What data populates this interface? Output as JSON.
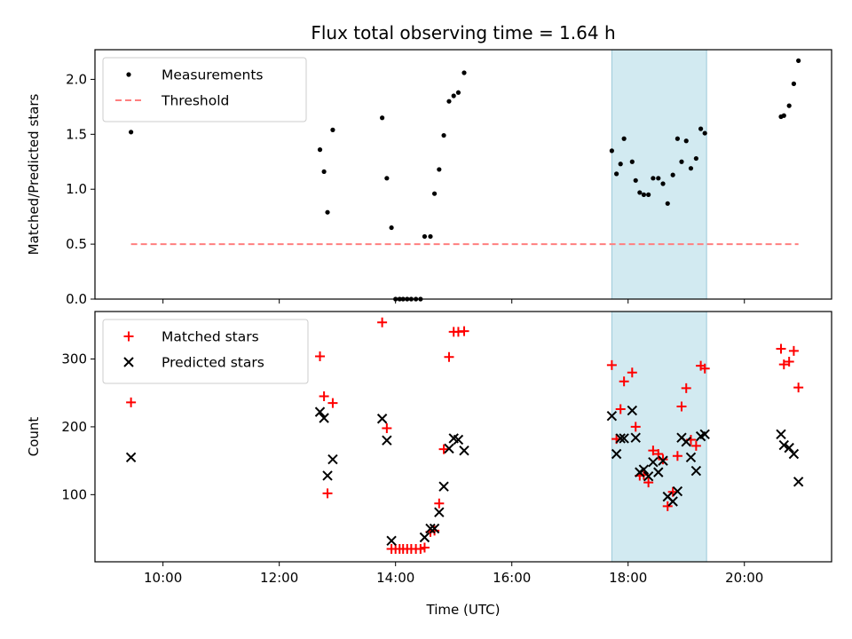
{
  "chart_data": {
    "type": "scatter",
    "title": "Flux total observing time = 1.64 h",
    "xlabel": "Time (UTC)",
    "xlim": [
      8.83,
      21.5
    ],
    "xticks": [
      10,
      12,
      14,
      16,
      18,
      20
    ],
    "xtick_labels": [
      "10:00",
      "12:00",
      "14:00",
      "16:00",
      "18:00",
      "20:00"
    ],
    "highlight_span": [
      17.72,
      19.35
    ],
    "highlight_color": "#add8e6",
    "panels": [
      {
        "ylabel": "Matched/Predicted stars",
        "ylim": [
          0,
          2.27
        ],
        "yticks": [
          0.0,
          0.5,
          1.0,
          1.5,
          2.0
        ],
        "ytick_labels": [
          "0.0",
          "0.5",
          "1.0",
          "1.5",
          "2.0"
        ],
        "legend": {
          "position": "top-left",
          "entries": [
            {
              "label": "Measurements",
              "marker": "dot",
              "color": "#000000"
            },
            {
              "label": "Threshold",
              "marker": "dash-line",
              "color": "#ff7f7f"
            }
          ]
        },
        "series": [
          {
            "name": "Measurements",
            "marker": "dot",
            "color": "#000000",
            "points": [
              [
                9.45,
                1.52
              ],
              [
                12.7,
                1.36
              ],
              [
                12.77,
                1.16
              ],
              [
                12.83,
                0.79
              ],
              [
                12.92,
                1.54
              ],
              [
                13.77,
                1.65
              ],
              [
                13.85,
                1.1
              ],
              [
                13.93,
                0.65
              ],
              [
                14.0,
                0.0
              ],
              [
                14.07,
                0.0
              ],
              [
                14.13,
                0.0
              ],
              [
                14.2,
                0.0
              ],
              [
                14.27,
                0.0
              ],
              [
                14.35,
                0.0
              ],
              [
                14.43,
                0.0
              ],
              [
                14.5,
                0.57
              ],
              [
                14.6,
                0.57
              ],
              [
                14.67,
                0.96
              ],
              [
                14.75,
                1.18
              ],
              [
                14.83,
                1.49
              ],
              [
                14.92,
                1.8
              ],
              [
                15.0,
                1.85
              ],
              [
                15.08,
                1.88
              ],
              [
                15.18,
                2.06
              ],
              [
                17.72,
                1.35
              ],
              [
                17.8,
                1.14
              ],
              [
                17.87,
                1.23
              ],
              [
                17.93,
                1.46
              ],
              [
                18.07,
                1.25
              ],
              [
                18.13,
                1.08
              ],
              [
                18.2,
                0.97
              ],
              [
                18.27,
                0.95
              ],
              [
                18.35,
                0.95
              ],
              [
                18.43,
                1.1
              ],
              [
                18.52,
                1.1
              ],
              [
                18.6,
                1.05
              ],
              [
                18.68,
                0.87
              ],
              [
                18.77,
                1.13
              ],
              [
                18.85,
                1.46
              ],
              [
                18.92,
                1.25
              ],
              [
                19.0,
                1.44
              ],
              [
                19.08,
                1.19
              ],
              [
                19.17,
                1.28
              ],
              [
                19.25,
                1.55
              ],
              [
                19.32,
                1.51
              ],
              [
                20.63,
                1.66
              ],
              [
                20.68,
                1.67
              ],
              [
                20.77,
                1.76
              ],
              [
                20.85,
                1.96
              ],
              [
                20.93,
                2.17
              ]
            ]
          },
          {
            "name": "Threshold",
            "marker": "dash-line",
            "color": "#ff7f7f",
            "points": [
              [
                9.45,
                0.5
              ],
              [
                20.93,
                0.5
              ]
            ]
          }
        ]
      },
      {
        "ylabel": "Count",
        "ylim": [
          1,
          370
        ],
        "yticks": [
          100,
          200,
          300
        ],
        "ytick_labels": [
          "100",
          "200",
          "300"
        ],
        "legend": {
          "position": "top-left",
          "entries": [
            {
              "label": "Matched stars",
              "marker": "plus",
              "color": "#ff0000"
            },
            {
              "label": "Predicted stars",
              "marker": "x",
              "color": "#000000"
            }
          ]
        },
        "series": [
          {
            "name": "Matched stars",
            "marker": "plus",
            "color": "#ff0000",
            "points": [
              [
                9.45,
                236
              ],
              [
                12.7,
                304
              ],
              [
                12.77,
                245
              ],
              [
                12.83,
                102
              ],
              [
                12.92,
                235
              ],
              [
                13.77,
                354
              ],
              [
                13.85,
                198
              ],
              [
                13.93,
                20
              ],
              [
                14.0,
                20
              ],
              [
                14.07,
                20
              ],
              [
                14.13,
                20
              ],
              [
                14.2,
                20
              ],
              [
                14.27,
                20
              ],
              [
                14.35,
                20
              ],
              [
                14.43,
                20
              ],
              [
                14.5,
                22
              ],
              [
                14.6,
                45
              ],
              [
                14.67,
                47
              ],
              [
                14.75,
                87
              ],
              [
                14.83,
                167
              ],
              [
                14.92,
                303
              ],
              [
                15.0,
                340
              ],
              [
                15.08,
                340
              ],
              [
                15.18,
                341
              ],
              [
                17.72,
                291
              ],
              [
                17.8,
                182
              ],
              [
                17.87,
                226
              ],
              [
                17.93,
                267
              ],
              [
                18.07,
                280
              ],
              [
                18.13,
                200
              ],
              [
                18.2,
                128
              ],
              [
                18.27,
                129
              ],
              [
                18.35,
                118
              ],
              [
                18.43,
                165
              ],
              [
                18.52,
                160
              ],
              [
                18.6,
                152
              ],
              [
                18.68,
                83
              ],
              [
                18.77,
                104
              ],
              [
                18.85,
                157
              ],
              [
                18.92,
                230
              ],
              [
                19.0,
                257
              ],
              [
                19.08,
                181
              ],
              [
                19.17,
                172
              ],
              [
                19.25,
                290
              ],
              [
                19.32,
                286
              ],
              [
                20.63,
                315
              ],
              [
                20.68,
                292
              ],
              [
                20.77,
                296
              ],
              [
                20.85,
                312
              ],
              [
                20.93,
                258
              ]
            ]
          },
          {
            "name": "Predicted stars",
            "marker": "x",
            "color": "#000000",
            "points": [
              [
                9.45,
                155
              ],
              [
                12.7,
                222
              ],
              [
                12.77,
                213
              ],
              [
                12.83,
                128
              ],
              [
                12.92,
                152
              ],
              [
                13.77,
                212
              ],
              [
                13.85,
                180
              ],
              [
                13.93,
                32
              ],
              [
                14.5,
                37
              ],
              [
                14.6,
                50
              ],
              [
                14.67,
                50
              ],
              [
                14.75,
                74
              ],
              [
                14.83,
                112
              ],
              [
                14.92,
                168
              ],
              [
                15.0,
                183
              ],
              [
                15.08,
                181
              ],
              [
                15.18,
                165
              ],
              [
                17.72,
                216
              ],
              [
                17.8,
                160
              ],
              [
                17.87,
                183
              ],
              [
                17.93,
                183
              ],
              [
                18.07,
                224
              ],
              [
                18.13,
                184
              ],
              [
                18.2,
                133
              ],
              [
                18.27,
                137
              ],
              [
                18.35,
                127
              ],
              [
                18.43,
                148
              ],
              [
                18.52,
                133
              ],
              [
                18.6,
                150
              ],
              [
                18.68,
                97
              ],
              [
                18.77,
                90
              ],
              [
                18.85,
                105
              ],
              [
                18.92,
                184
              ],
              [
                19.0,
                178
              ],
              [
                19.08,
                155
              ],
              [
                19.17,
                135
              ],
              [
                19.25,
                186
              ],
              [
                19.32,
                189
              ],
              [
                20.63,
                189
              ],
              [
                20.68,
                173
              ],
              [
                20.77,
                169
              ],
              [
                20.85,
                160
              ],
              [
                20.93,
                119
              ]
            ]
          }
        ]
      }
    ]
  }
}
